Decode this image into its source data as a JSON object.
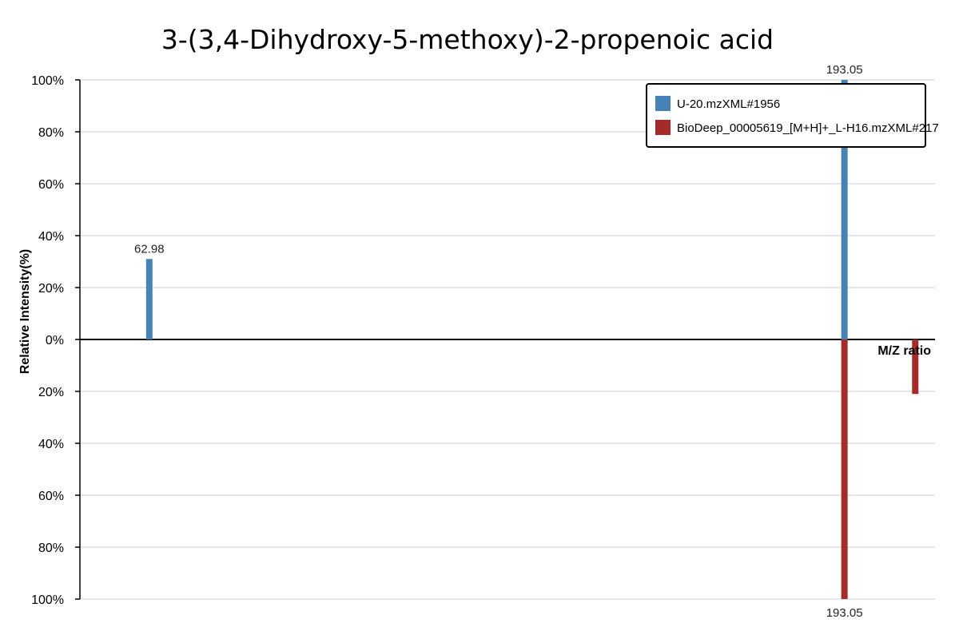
{
  "chart_data": {
    "type": "bar",
    "title": "3-(3,4-Dihydroxy-5-methoxy)-2-propenoic acid",
    "xlabel": "M/Z ratio",
    "ylabel": "Relative Intensity(%)",
    "ylim": [
      -100,
      100
    ],
    "xlim": [
      50,
      210
    ],
    "y_tick_labels": [
      "100%",
      "80%",
      "60%",
      "40%",
      "20%",
      "0%",
      "20%",
      "40%",
      "60%",
      "80%",
      "100%"
    ],
    "grid": true,
    "legend_position": "top-right",
    "series": [
      {
        "name": "U-20.mzXML#1956",
        "color": "#4682b4",
        "direction": "up",
        "peaks": [
          {
            "mz": 62.98,
            "intensity": 31,
            "label": "62.98"
          },
          {
            "mz": 193.05,
            "intensity": 100,
            "label": "193.05"
          }
        ]
      },
      {
        "name": "BioDeep_00005619_[M+H]+_L-H16.mzXML#217",
        "color": "#a52a2a",
        "direction": "down",
        "peaks": [
          {
            "mz": 193.05,
            "intensity": 100,
            "label": "193.05"
          },
          {
            "mz": 206.3,
            "intensity": 21,
            "label": ""
          }
        ]
      }
    ]
  }
}
